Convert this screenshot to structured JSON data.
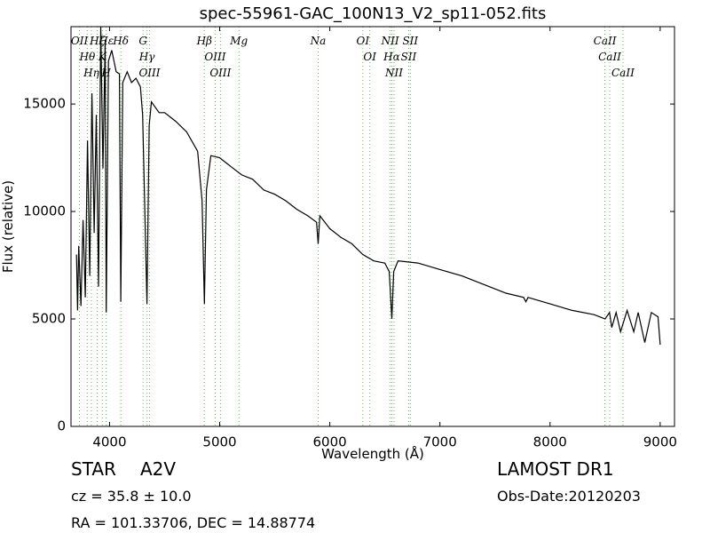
{
  "chart_data": {
    "type": "line",
    "title": "spec-55961-GAC_100N13_V2_sp11-052.fits",
    "x_label": "Wavelength (Å)",
    "y_label": "Flux (relative)",
    "xlim": [
      3650,
      9130
    ],
    "ylim": [
      0,
      18600
    ],
    "xticks": [
      4000,
      5000,
      6000,
      7000,
      8000,
      9000
    ],
    "yticks": [
      0,
      5000,
      10000,
      15000
    ],
    "x": [
      3700,
      3710,
      3720,
      3740,
      3760,
      3780,
      3800,
      3820,
      3840,
      3860,
      3880,
      3900,
      3920,
      3940,
      3960,
      3970,
      3990,
      4020,
      4060,
      4090,
      4102,
      4120,
      4160,
      4200,
      4240,
      4280,
      4300,
      4340,
      4360,
      4380,
      4450,
      4500,
      4600,
      4700,
      4800,
      4840,
      4861,
      4880,
      4920,
      5000,
      5100,
      5200,
      5300,
      5400,
      5500,
      5600,
      5700,
      5800,
      5880,
      5894,
      5910,
      6000,
      6100,
      6200,
      6300,
      6400,
      6500,
      6540,
      6563,
      6580,
      6620,
      6800,
      7000,
      7200,
      7400,
      7600,
      7760,
      7780,
      7800,
      8000,
      8200,
      8400,
      8500,
      8540,
      8560,
      8600,
      8640,
      8700,
      8760,
      8800,
      8860,
      8920,
      8980,
      9000
    ],
    "series": [
      {
        "name": "flux",
        "color": "#000000",
        "values": [
          8000,
          5400,
          8400,
          5600,
          9600,
          6000,
          13300,
          7000,
          15500,
          9000,
          14500,
          6500,
          18600,
          12000,
          18000,
          5300,
          17000,
          17500,
          16500,
          16400,
          5800,
          16000,
          16500,
          16000,
          16200,
          15800,
          14500,
          5700,
          14000,
          15100,
          14600,
          14600,
          14200,
          13700,
          12800,
          10500,
          5700,
          11000,
          12600,
          12500,
          12100,
          11700,
          11500,
          11000,
          10800,
          10500,
          10100,
          9800,
          9500,
          8500,
          9800,
          9200,
          8800,
          8500,
          8000,
          7700,
          7600,
          7200,
          5000,
          7200,
          7700,
          7600,
          7300,
          7000,
          6600,
          6200,
          6000,
          5800,
          6000,
          5700,
          5400,
          5200,
          5000,
          5300,
          4600,
          5300,
          4400,
          5400,
          4400,
          5300,
          3900,
          5300,
          5100,
          3800
        ]
      }
    ],
    "line_color": "#66bb66",
    "lines": [
      {
        "name": "OII",
        "x": 3727
      },
      {
        "name": "Hθ",
        "x": 3798
      },
      {
        "name": "Hη",
        "x": 3835
      },
      {
        "name": "Hζ",
        "x": 3889
      },
      {
        "name": "K",
        "x": 3934
      },
      {
        "name": "H",
        "x": 3969
      },
      {
        "name": "Hε",
        "x": 3970
      },
      {
        "name": "Hδ",
        "x": 4102
      },
      {
        "name": "G",
        "x": 4304
      },
      {
        "name": "Hγ",
        "x": 4340
      },
      {
        "name": "OIII",
        "x": 4363
      },
      {
        "name": "Hβ",
        "x": 4861
      },
      {
        "name": "OIII",
        "x": 4959
      },
      {
        "name": "OIII",
        "x": 5007
      },
      {
        "name": "Mg",
        "x": 5175
      },
      {
        "name": "Na",
        "x": 5894
      },
      {
        "name": "OI",
        "x": 6300
      },
      {
        "name": "OI",
        "x": 6363
      },
      {
        "name": "NII",
        "x": 6548
      },
      {
        "name": "Hα",
        "x": 6563
      },
      {
        "name": "NII",
        "x": 6583
      },
      {
        "name": "SII",
        "x": 6716
      },
      {
        "name": "SII",
        "x": 6731
      },
      {
        "name": "CaII",
        "x": 8498
      },
      {
        "name": "CaII",
        "x": 8542
      },
      {
        "name": "CaII",
        "x": 8662
      }
    ],
    "object_class": "STAR",
    "subclass": "A2V",
    "redshift": "cz = 35.8 ± 10.0",
    "coords": "RA = 101.33706, DEC = 14.88774",
    "survey": "LAMOST DR1",
    "obs_date": "Obs-Date:20120203"
  }
}
